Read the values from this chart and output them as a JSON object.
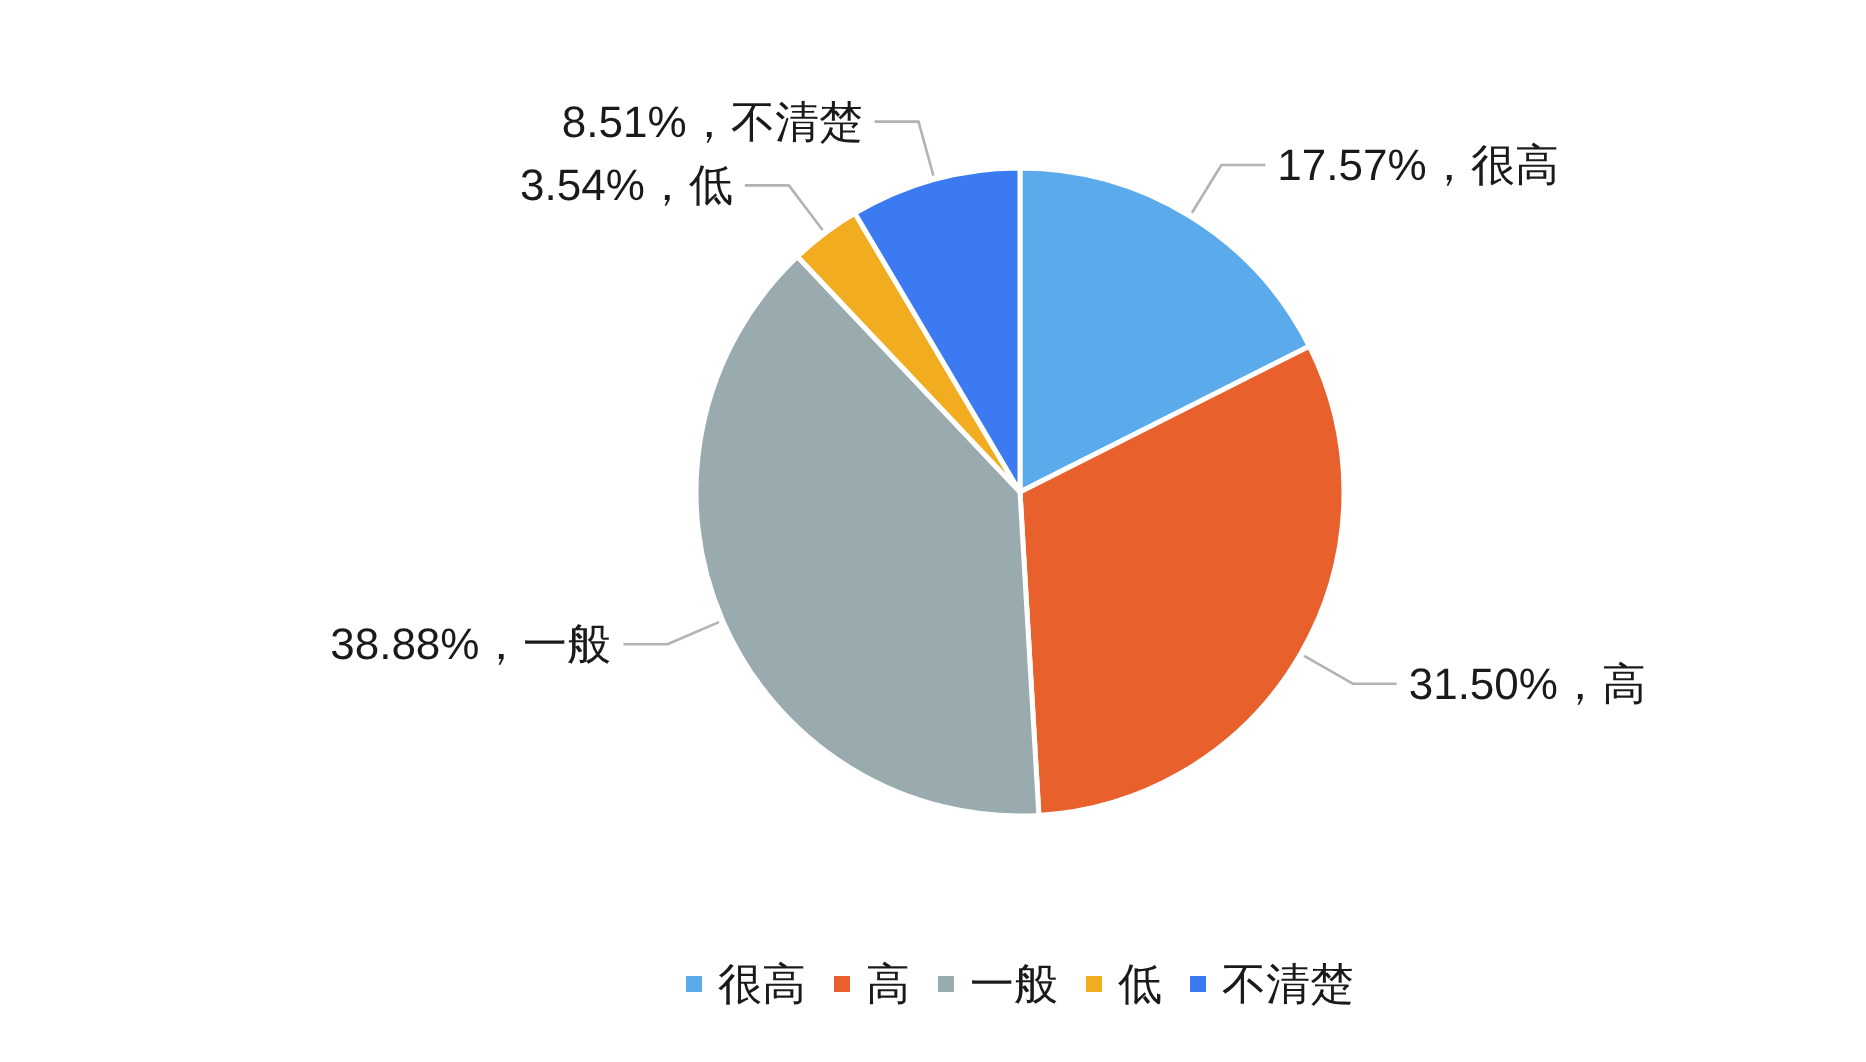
{
  "chart_data": {
    "type": "pie",
    "categories": [
      "很高",
      "高",
      "一般",
      "低",
      "不清楚"
    ],
    "values": [
      17.57,
      31.5,
      38.88,
      3.54,
      8.51
    ],
    "colors": [
      "#5aaaec",
      "#e8602c",
      "#9aabb0",
      "#f1ad1f",
      "#3b7af0"
    ],
    "value_labels": [
      "17.57%，很高",
      "31.50%，高",
      "38.88%，一般",
      "3.54%，低",
      "8.51%，不清楚"
    ],
    "legend": "bottom"
  }
}
